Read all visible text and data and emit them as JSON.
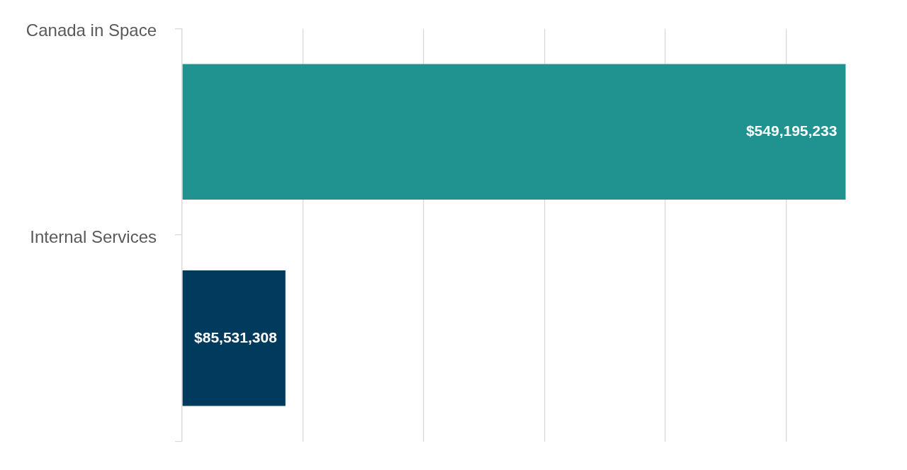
{
  "chart_data": {
    "type": "bar",
    "orientation": "horizontal",
    "categories": [
      "Canada in Space",
      "Internal Services"
    ],
    "values": [
      549195233,
      85531308
    ],
    "colors": [
      "#209391",
      "#003a5d"
    ],
    "value_labels": [
      "$549,195,233",
      "$85,531,308"
    ],
    "xticks": [
      {
        "value": 0,
        "label": null
      },
      {
        "value": 100000000,
        "label": null
      },
      {
        "value": 200000000,
        "label": null
      },
      {
        "value": 300000000,
        "label": null
      },
      {
        "value": 400000000,
        "label": null
      },
      {
        "value": 500000000,
        "label": null
      }
    ],
    "grid": "x",
    "tick_labels": "y",
    "legend": false
  }
}
